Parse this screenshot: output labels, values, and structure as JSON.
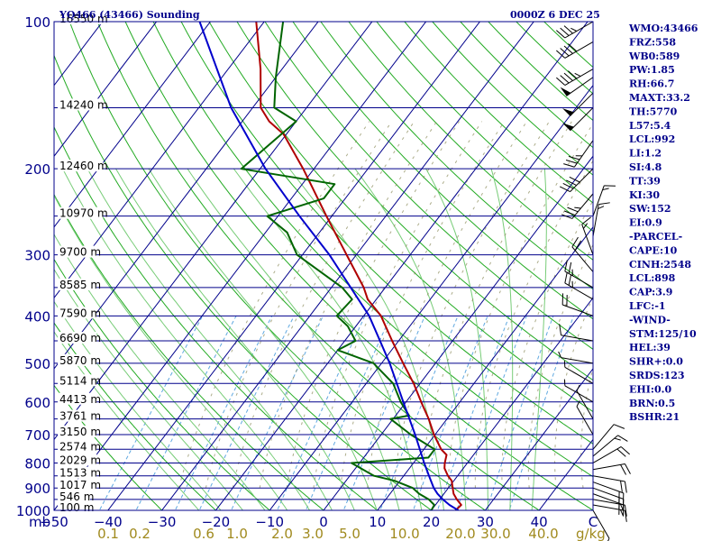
{
  "header": {
    "station": "YQ466 (43466) Sounding",
    "time": "0000Z  6 DEC 25"
  },
  "colors": {
    "frame": "#00008b",
    "isobar": "#00008b",
    "isotherm": "#00008b",
    "dry_adiabat": "#22aa22",
    "moist_adiabat": "#77cc77",
    "mixing_ratio": "#5fa8e0",
    "theta_e": "#8a8a5a",
    "temperature": "#b00000",
    "dewpoint": "#006400",
    "parcel": "#0000cc",
    "wind": "#000000",
    "mixing_label": "#a08a1e"
  },
  "chart_data": {
    "type": "line",
    "chart_kind": "skew-T log-P sounding",
    "pressure_axis": {
      "scale": "log",
      "range_hpa": [
        1000,
        100
      ],
      "ticks": [
        100,
        200,
        300,
        400,
        500,
        600,
        700,
        800,
        900,
        1000
      ],
      "unit_label": "mb"
    },
    "temperature_axis": {
      "range_c": [
        -50,
        50
      ],
      "ticks": [
        -50,
        -40,
        -30,
        -20,
        -10,
        0,
        10,
        20,
        30,
        40
      ],
      "tick_labels": [
        "−50",
        "−40",
        "−30",
        "−20",
        "−10",
        "0",
        "10",
        "20",
        "30",
        "40"
      ],
      "skew_per_decade_c": 69
    },
    "right_axis_label": "C",
    "mixing_ratio_axis": {
      "unit_label": "g/kg",
      "ticks": [
        0.1,
        0.2,
        0.6,
        1.0,
        2.0,
        3.0,
        5.0,
        10.0,
        20.0,
        30.0,
        40.0
      ],
      "tick_labels": [
        "0.1",
        "0.2",
        "0.6",
        "1.0",
        "2.0",
        "3.0",
        "5.0",
        "10.0",
        "20.0",
        "30.0",
        "40.0"
      ]
    },
    "height_labels": [
      {
        "p": 100,
        "text": "16550 m"
      },
      {
        "p": 150,
        "text": "14240 m"
      },
      {
        "p": 200,
        "text": "12460 m"
      },
      {
        "p": 250,
        "text": "10970 m"
      },
      {
        "p": 300,
        "text": "9700 m"
      },
      {
        "p": 350,
        "text": "8585 m"
      },
      {
        "p": 400,
        "text": "7590 m"
      },
      {
        "p": 450,
        "text": "6690 m"
      },
      {
        "p": 500,
        "text": "5870 m"
      },
      {
        "p": 550,
        "text": "5114 m"
      },
      {
        "p": 600,
        "text": "4413 m"
      },
      {
        "p": 650,
        "text": "3761 m"
      },
      {
        "p": 700,
        "text": "3150 m"
      },
      {
        "p": 750,
        "text": "2574 m"
      },
      {
        "p": 800,
        "text": "2029 m"
      },
      {
        "p": 850,
        "text": "1513 m"
      },
      {
        "p": 900,
        "text": "1017 m"
      },
      {
        "p": 950,
        "text": "546 m"
      },
      {
        "p": 1000,
        "text": "100 m"
      }
    ],
    "series": [
      {
        "name": "Temperature",
        "points": [
          {
            "p": 1000,
            "t": 24.5
          },
          {
            "p": 975,
            "t": 24.8
          },
          {
            "p": 950,
            "t": 23.2
          },
          {
            "p": 925,
            "t": 21.8
          },
          {
            "p": 900,
            "t": 20.8
          },
          {
            "p": 870,
            "t": 19.6
          },
          {
            "p": 850,
            "t": 18.2
          },
          {
            "p": 820,
            "t": 16.5
          },
          {
            "p": 800,
            "t": 15.8
          },
          {
            "p": 770,
            "t": 15.0
          },
          {
            "p": 750,
            "t": 13.2
          },
          {
            "p": 700,
            "t": 9.8
          },
          {
            "p": 650,
            "t": 6.6
          },
          {
            "p": 600,
            "t": 2.8
          },
          {
            "p": 550,
            "t": -1.2
          },
          {
            "p": 500,
            "t": -6.0
          },
          {
            "p": 450,
            "t": -11.2
          },
          {
            "p": 400,
            "t": -16.8
          },
          {
            "p": 370,
            "t": -21.6
          },
          {
            "p": 350,
            "t": -24.0
          },
          {
            "p": 300,
            "t": -31.8
          },
          {
            "p": 250,
            "t": -41.0
          },
          {
            "p": 200,
            "t": -52.0
          },
          {
            "p": 170,
            "t": -60.5
          },
          {
            "p": 160,
            "t": -65.0
          },
          {
            "p": 150,
            "t": -68.5
          },
          {
            "p": 125,
            "t": -74.0
          },
          {
            "p": 100,
            "t": -81.5
          }
        ]
      },
      {
        "name": "Dewpoint",
        "points": [
          {
            "p": 1000,
            "t": 20.0
          },
          {
            "p": 975,
            "t": 19.8
          },
          {
            "p": 950,
            "t": 18.0
          },
          {
            "p": 925,
            "t": 15.4
          },
          {
            "p": 900,
            "t": 13.4
          },
          {
            "p": 870,
            "t": 9.0
          },
          {
            "p": 850,
            "t": 4.5
          },
          {
            "p": 800,
            "t": -1.5
          },
          {
            "p": 780,
            "t": 12.0
          },
          {
            "p": 750,
            "t": 12.0
          },
          {
            "p": 700,
            "t": 5.5
          },
          {
            "p": 650,
            "t": -0.5
          },
          {
            "p": 640,
            "t": 2.5
          },
          {
            "p": 600,
            "t": -1.0
          },
          {
            "p": 550,
            "t": -5.0
          },
          {
            "p": 500,
            "t": -11.5
          },
          {
            "p": 470,
            "t": -20.0
          },
          {
            "p": 450,
            "t": -18.0
          },
          {
            "p": 420,
            "t": -21.5
          },
          {
            "p": 400,
            "t": -25.0
          },
          {
            "p": 370,
            "t": -24.5
          },
          {
            "p": 350,
            "t": -28.0
          },
          {
            "p": 300,
            "t": -41.0
          },
          {
            "p": 270,
            "t": -46.0
          },
          {
            "p": 250,
            "t": -52.0
          },
          {
            "p": 230,
            "t": -44.0
          },
          {
            "p": 215,
            "t": -44.0
          },
          {
            "p": 200,
            "t": -63.5
          },
          {
            "p": 160,
            "t": -60.0
          },
          {
            "p": 150,
            "t": -66.0
          },
          {
            "p": 130,
            "t": -70.0
          },
          {
            "p": 100,
            "t": -76.5
          }
        ]
      },
      {
        "name": "Parcel",
        "points": [
          {
            "p": 1000,
            "t": 25.0
          },
          {
            "p": 975,
            "t": 22.6
          },
          {
            "p": 950,
            "t": 20.6
          },
          {
            "p": 925,
            "t": 18.8
          },
          {
            "p": 900,
            "t": 17.3
          },
          {
            "p": 850,
            "t": 14.7
          },
          {
            "p": 800,
            "t": 12.0
          },
          {
            "p": 700,
            "t": 6.3
          },
          {
            "p": 600,
            "t": -0.5
          },
          {
            "p": 500,
            "t": -8.5
          },
          {
            "p": 400,
            "t": -19.0
          },
          {
            "p": 300,
            "t": -35.0
          },
          {
            "p": 250,
            "t": -46.0
          },
          {
            "p": 200,
            "t": -59.0
          },
          {
            "p": 150,
            "t": -74.0
          },
          {
            "p": 100,
            "t": -92.0
          }
        ]
      }
    ],
    "wind_barbs": [
      {
        "p": 1000,
        "dir": 150,
        "kt": 5
      },
      {
        "p": 975,
        "dir": 100,
        "kt": 15
      },
      {
        "p": 950,
        "dir": 100,
        "kt": 15
      },
      {
        "p": 925,
        "dir": 110,
        "kt": 20
      },
      {
        "p": 900,
        "dir": 110,
        "kt": 20
      },
      {
        "p": 875,
        "dir": 110,
        "kt": 20
      },
      {
        "p": 850,
        "dir": 100,
        "kt": 20
      },
      {
        "p": 825,
        "dir": 80,
        "kt": 20
      },
      {
        "p": 800,
        "dir": 60,
        "kt": 20
      },
      {
        "p": 775,
        "dir": 50,
        "kt": 15
      },
      {
        "p": 750,
        "dir": 40,
        "kt": 10
      },
      {
        "p": 700,
        "dir": 330,
        "kt": 5
      },
      {
        "p": 650,
        "dir": 330,
        "kt": 5
      },
      {
        "p": 600,
        "dir": 300,
        "kt": 5
      },
      {
        "p": 550,
        "dir": 300,
        "kt": 5
      },
      {
        "p": 500,
        "dir": 280,
        "kt": 5
      },
      {
        "p": 450,
        "dir": 280,
        "kt": 10
      },
      {
        "p": 400,
        "dir": 290,
        "kt": 20
      },
      {
        "p": 370,
        "dir": 300,
        "kt": 25
      },
      {
        "p": 350,
        "dir": 300,
        "kt": 25
      },
      {
        "p": 325,
        "dir": 320,
        "kt": 20
      },
      {
        "p": 300,
        "dir": 340,
        "kt": 15
      },
      {
        "p": 275,
        "dir": 10,
        "kt": 15
      },
      {
        "p": 250,
        "dir": 20,
        "kt": 15
      },
      {
        "p": 225,
        "dir": 220,
        "kt": 35
      },
      {
        "p": 200,
        "dir": 225,
        "kt": 40
      },
      {
        "p": 175,
        "dir": 215,
        "kt": 35
      },
      {
        "p": 150,
        "dir": 225,
        "kt": 50
      },
      {
        "p": 140,
        "dir": 225,
        "kt": 50
      },
      {
        "p": 130,
        "dir": 235,
        "kt": 50
      },
      {
        "p": 125,
        "dir": 240,
        "kt": 45
      },
      {
        "p": 110,
        "dir": 240,
        "kt": 40
      },
      {
        "p": 100,
        "dir": 240,
        "kt": 35
      }
    ]
  },
  "indices": [
    "WMO:43466",
    "FRZ:558",
    "WB0:589",
    "PW:1.85",
    "RH:66.7",
    "MAXT:33.2",
    "TH:5770",
    "L57:5.4",
    "LCL:992",
    "LI:1.2",
    "SI:4.8",
    "TT:39",
    "KI:30",
    "SW:152",
    "EI:0.9",
    "-PARCEL-",
    "CAPE:10",
    "CINH:2548",
    "LCL:898",
    "CAP:3.9",
    "LFC:-1",
    "-WIND-",
    "STM:125/10",
    "HEL:39",
    "SHR+:0.0",
    "SRDS:123",
    "EHI:0.0",
    "BRN:0.5",
    "BSHR:21"
  ]
}
